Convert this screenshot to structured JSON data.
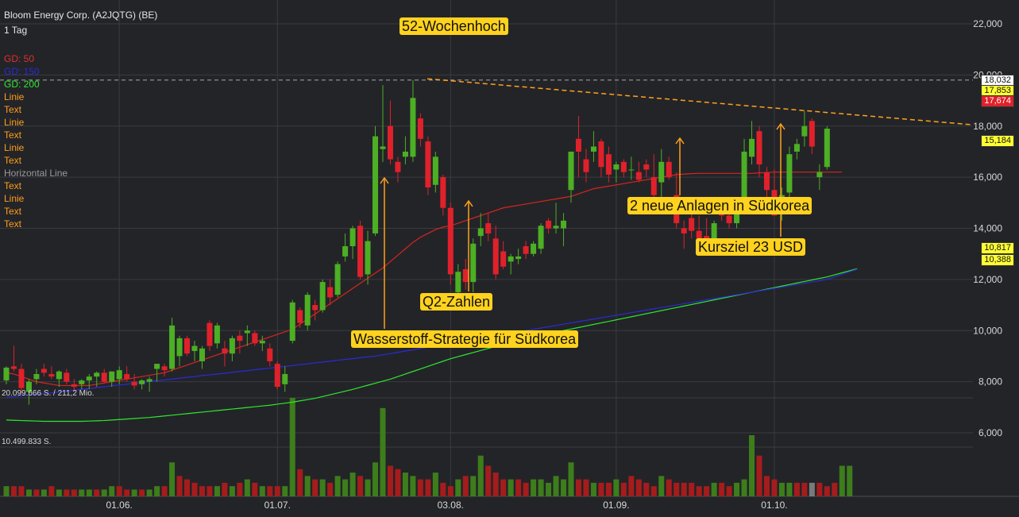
{
  "header": {
    "instrument": "Bloom Energy Corp. (A2JQTG) (BE)",
    "interval": "1 Tag"
  },
  "legend": [
    {
      "label": "GD: 50",
      "color": "#e0312b"
    },
    {
      "label": "GD: 150",
      "color": "#2b2bd6"
    },
    {
      "label": "GD: 200",
      "color": "#2ee82e"
    },
    {
      "label": "Linie",
      "color": "#ff9d1c"
    },
    {
      "label": "Text",
      "color": "#ff9d1c"
    },
    {
      "label": "Linie",
      "color": "#ff9d1c"
    },
    {
      "label": "Text",
      "color": "#ff9d1c"
    },
    {
      "label": "Linie",
      "color": "#ff9d1c"
    },
    {
      "label": "Text",
      "color": "#ff9d1c"
    },
    {
      "label": "Horizontal Line",
      "color": "#9a9a9a"
    },
    {
      "label": "Text",
      "color": "#ff9d1c"
    },
    {
      "label": "Linie",
      "color": "#ff9d1c"
    },
    {
      "label": "Text",
      "color": "#ff9d1c"
    },
    {
      "label": "Text",
      "color": "#ff9d1c"
    }
  ],
  "volume_labels": {
    "max": "20.099.666 S. / 211,2 Mio.",
    "mid": "10.499.833 S."
  },
  "annotations": {
    "high52": "52-Wochenhoch",
    "q2": "Q2-Zahlen",
    "wasserstoff": "Wasserstoff-Strategie für Südkorea",
    "anlagen": "2 neue Anlagen in Südkorea",
    "kursziel": "Kursziel 23 USD"
  },
  "price_tags": [
    {
      "text": "18,032",
      "bg": "#ffffff",
      "fg": "#111111"
    },
    {
      "text": "17,853",
      "bg": "#ffff33",
      "fg": "#111111"
    },
    {
      "text": "17,674",
      "bg": "#e0212b",
      "fg": "#ffffff"
    },
    {
      "text": "15,184",
      "bg": "#ffff33",
      "fg": "#111111"
    },
    {
      "text": "10,817",
      "bg": "#ffff33",
      "fg": "#111111"
    },
    {
      "text": "10,388",
      "bg": "#ffff33",
      "fg": "#111111"
    }
  ],
  "colors": {
    "up": "#4caf24",
    "down": "#e0212b",
    "vol_up": "#3d7d1c",
    "vol_down": "#a51c1c",
    "vol_neutral": "#7a7a7a",
    "grid": "#3a3b40",
    "axis_text": "#d8d8d8",
    "resistance": "#ffa21c"
  },
  "chart_data": {
    "type": "candlestick",
    "ylim": [
      6000,
      22000
    ],
    "y_ticks": [
      "22,000",
      "20,000",
      "18,000",
      "16,000",
      "14,000",
      "12,000",
      "10,000",
      "8,000",
      "6,000"
    ],
    "y_tick_values": [
      22000,
      20000,
      18000,
      16000,
      14000,
      12000,
      10000,
      8000,
      6000
    ],
    "x_ticks": [
      "01.06.",
      "01.07.",
      "03.08.",
      "01.09.",
      "01.10."
    ],
    "x_tick_index": [
      15,
      36,
      59,
      81,
      102
    ],
    "candles": [
      {
        "o": 8.05,
        "h": 8.6,
        "l": 7.9,
        "c": 8.55
      },
      {
        "o": 8.6,
        "h": 9.4,
        "l": 8.4,
        "c": 8.5
      },
      {
        "o": 8.5,
        "h": 8.7,
        "l": 7.6,
        "c": 7.75
      },
      {
        "o": 7.6,
        "h": 8.1,
        "l": 7.1,
        "c": 8.0
      },
      {
        "o": 8.1,
        "h": 8.5,
        "l": 7.9,
        "c": 8.3
      },
      {
        "o": 8.5,
        "h": 8.7,
        "l": 8.2,
        "c": 8.35
      },
      {
        "o": 8.3,
        "h": 8.6,
        "l": 8.1,
        "c": 8.2
      },
      {
        "o": 8.1,
        "h": 8.45,
        "l": 7.8,
        "c": 8.4
      },
      {
        "o": 8.35,
        "h": 8.5,
        "l": 7.9,
        "c": 8.0
      },
      {
        "o": 7.9,
        "h": 8.1,
        "l": 7.6,
        "c": 7.8
      },
      {
        "o": 7.9,
        "h": 8.1,
        "l": 7.7,
        "c": 8.05
      },
      {
        "o": 8.05,
        "h": 8.3,
        "l": 7.7,
        "c": 8.2
      },
      {
        "o": 8.2,
        "h": 8.4,
        "l": 7.8,
        "c": 8.35
      },
      {
        "o": 8.35,
        "h": 8.5,
        "l": 7.95,
        "c": 8.0
      },
      {
        "o": 8.0,
        "h": 8.4,
        "l": 7.8,
        "c": 8.4
      },
      {
        "o": 8.1,
        "h": 8.6,
        "l": 7.9,
        "c": 8.45
      },
      {
        "o": 8.3,
        "h": 8.6,
        "l": 8.0,
        "c": 8.1
      },
      {
        "o": 8.0,
        "h": 8.3,
        "l": 7.7,
        "c": 7.85
      },
      {
        "o": 7.9,
        "h": 8.1,
        "l": 7.7,
        "c": 8.05
      },
      {
        "o": 8.0,
        "h": 8.2,
        "l": 7.6,
        "c": 8.1
      },
      {
        "o": 8.5,
        "h": 8.7,
        "l": 8.0,
        "c": 8.7
      },
      {
        "o": 8.6,
        "h": 8.7,
        "l": 8.2,
        "c": 8.45
      },
      {
        "o": 8.5,
        "h": 10.5,
        "l": 8.4,
        "c": 10.2
      },
      {
        "o": 9.0,
        "h": 9.8,
        "l": 8.6,
        "c": 9.7
      },
      {
        "o": 9.7,
        "h": 9.8,
        "l": 9.0,
        "c": 9.1
      },
      {
        "o": 9.2,
        "h": 9.6,
        "l": 8.8,
        "c": 9.4
      },
      {
        "o": 8.8,
        "h": 9.4,
        "l": 8.5,
        "c": 9.3
      },
      {
        "o": 10.3,
        "h": 10.4,
        "l": 9.2,
        "c": 9.4
      },
      {
        "o": 9.5,
        "h": 10.3,
        "l": 9.3,
        "c": 10.2
      },
      {
        "o": 9.3,
        "h": 9.6,
        "l": 8.6,
        "c": 9.1
      },
      {
        "o": 9.1,
        "h": 9.8,
        "l": 8.8,
        "c": 9.7
      },
      {
        "o": 9.8,
        "h": 10.0,
        "l": 9.1,
        "c": 9.6
      },
      {
        "o": 9.9,
        "h": 10.2,
        "l": 9.4,
        "c": 10.0
      },
      {
        "o": 9.9,
        "h": 10.0,
        "l": 9.4,
        "c": 9.5
      },
      {
        "o": 9.5,
        "h": 9.8,
        "l": 9.2,
        "c": 9.6
      },
      {
        "o": 9.3,
        "h": 9.5,
        "l": 8.6,
        "c": 8.8
      },
      {
        "o": 8.7,
        "h": 8.8,
        "l": 7.7,
        "c": 7.8
      },
      {
        "o": 7.9,
        "h": 8.6,
        "l": 7.6,
        "c": 8.3
      },
      {
        "o": 9.6,
        "h": 11.2,
        "l": 9.5,
        "c": 11.1
      },
      {
        "o": 10.8,
        "h": 10.9,
        "l": 10.1,
        "c": 10.3
      },
      {
        "o": 10.2,
        "h": 11.5,
        "l": 10.0,
        "c": 11.4
      },
      {
        "o": 11.0,
        "h": 11.2,
        "l": 10.4,
        "c": 10.8
      },
      {
        "o": 10.8,
        "h": 12.0,
        "l": 10.7,
        "c": 11.9
      },
      {
        "o": 11.7,
        "h": 12.0,
        "l": 11.0,
        "c": 11.3
      },
      {
        "o": 11.4,
        "h": 12.7,
        "l": 11.3,
        "c": 12.6
      },
      {
        "o": 12.9,
        "h": 13.8,
        "l": 12.7,
        "c": 13.3
      },
      {
        "o": 13.3,
        "h": 14.1,
        "l": 12.8,
        "c": 14.0
      },
      {
        "o": 14.1,
        "h": 14.3,
        "l": 12.0,
        "c": 12.1
      },
      {
        "o": 12.2,
        "h": 13.9,
        "l": 11.8,
        "c": 13.5
      },
      {
        "o": 13.8,
        "h": 18.0,
        "l": 13.7,
        "c": 17.6
      },
      {
        "o": 17.1,
        "h": 19.6,
        "l": 16.6,
        "c": 17.2
      },
      {
        "o": 18.0,
        "h": 19.0,
        "l": 16.5,
        "c": 16.7
      },
      {
        "o": 16.6,
        "h": 16.8,
        "l": 15.8,
        "c": 16.2
      },
      {
        "o": 16.8,
        "h": 17.6,
        "l": 16.5,
        "c": 17.0
      },
      {
        "o": 16.8,
        "h": 19.8,
        "l": 16.6,
        "c": 19.1
      },
      {
        "o": 18.3,
        "h": 18.5,
        "l": 17.2,
        "c": 17.5
      },
      {
        "o": 17.4,
        "h": 17.6,
        "l": 15.3,
        "c": 15.6
      },
      {
        "o": 15.7,
        "h": 17.0,
        "l": 15.4,
        "c": 16.8
      },
      {
        "o": 16.0,
        "h": 16.1,
        "l": 14.5,
        "c": 14.8
      },
      {
        "o": 14.8,
        "h": 15.0,
        "l": 11.8,
        "c": 12.2
      },
      {
        "o": 11.5,
        "h": 12.6,
        "l": 11.3,
        "c": 12.3
      },
      {
        "o": 12.4,
        "h": 12.8,
        "l": 11.6,
        "c": 11.9
      },
      {
        "o": 11.9,
        "h": 13.6,
        "l": 11.5,
        "c": 13.4
      },
      {
        "o": 13.7,
        "h": 14.6,
        "l": 13.3,
        "c": 14.0
      },
      {
        "o": 14.2,
        "h": 14.6,
        "l": 13.5,
        "c": 13.8
      },
      {
        "o": 13.6,
        "h": 14.1,
        "l": 12.0,
        "c": 12.2
      },
      {
        "o": 13.1,
        "h": 13.5,
        "l": 12.4,
        "c": 12.5
      },
      {
        "o": 12.7,
        "h": 13.0,
        "l": 12.2,
        "c": 12.9
      },
      {
        "o": 12.8,
        "h": 13.2,
        "l": 12.6,
        "c": 12.9
      },
      {
        "o": 13.3,
        "h": 13.5,
        "l": 12.8,
        "c": 13.0
      },
      {
        "o": 13.0,
        "h": 13.5,
        "l": 12.9,
        "c": 13.4
      },
      {
        "o": 13.2,
        "h": 14.2,
        "l": 13.0,
        "c": 14.1
      },
      {
        "o": 14.3,
        "h": 14.4,
        "l": 13.8,
        "c": 14.0
      },
      {
        "o": 14.0,
        "h": 15.0,
        "l": 13.8,
        "c": 14.1
      },
      {
        "o": 14.0,
        "h": 14.6,
        "l": 13.3,
        "c": 14.3
      },
      {
        "o": 15.5,
        "h": 16.8,
        "l": 15.0,
        "c": 17.0
      },
      {
        "o": 17.5,
        "h": 18.4,
        "l": 16.0,
        "c": 17.0
      },
      {
        "o": 16.7,
        "h": 17.1,
        "l": 15.8,
        "c": 16.2
      },
      {
        "o": 17.0,
        "h": 17.8,
        "l": 16.6,
        "c": 17.2
      },
      {
        "o": 17.4,
        "h": 17.5,
        "l": 16.0,
        "c": 16.4
      },
      {
        "o": 16.9,
        "h": 17.2,
        "l": 15.8,
        "c": 16.1
      },
      {
        "o": 16.3,
        "h": 16.6,
        "l": 15.8,
        "c": 16.5
      },
      {
        "o": 16.6,
        "h": 16.7,
        "l": 16.0,
        "c": 16.2
      },
      {
        "o": 16.3,
        "h": 16.8,
        "l": 15.9,
        "c": 16.3
      },
      {
        "o": 16.2,
        "h": 16.6,
        "l": 15.8,
        "c": 15.9
      },
      {
        "o": 16.5,
        "h": 16.7,
        "l": 16.0,
        "c": 16.3
      },
      {
        "o": 16.0,
        "h": 16.9,
        "l": 15.1,
        "c": 15.3
      },
      {
        "o": 15.8,
        "h": 17.1,
        "l": 15.2,
        "c": 16.6
      },
      {
        "o": 16.6,
        "h": 16.8,
        "l": 15.9,
        "c": 16.0
      },
      {
        "o": 15.3,
        "h": 16.2,
        "l": 14.0,
        "c": 14.2
      },
      {
        "o": 14.0,
        "h": 14.3,
        "l": 13.2,
        "c": 13.8
      },
      {
        "o": 14.4,
        "h": 14.7,
        "l": 13.6,
        "c": 13.9
      },
      {
        "o": 13.9,
        "h": 14.5,
        "l": 13.5,
        "c": 13.6
      },
      {
        "o": 13.7,
        "h": 14.4,
        "l": 13.2,
        "c": 13.4
      },
      {
        "o": 13.4,
        "h": 14.3,
        "l": 13.3,
        "c": 14.2
      },
      {
        "o": 14.6,
        "h": 15.2,
        "l": 14.3,
        "c": 14.5
      },
      {
        "o": 14.5,
        "h": 15.0,
        "l": 14.0,
        "c": 14.2
      },
      {
        "o": 14.2,
        "h": 15.2,
        "l": 14.0,
        "c": 14.6
      },
      {
        "o": 15.0,
        "h": 17.5,
        "l": 14.8,
        "c": 17.0
      },
      {
        "o": 16.8,
        "h": 18.2,
        "l": 16.5,
        "c": 17.5
      },
      {
        "o": 17.8,
        "h": 18.0,
        "l": 16.0,
        "c": 16.5
      },
      {
        "o": 16.2,
        "h": 16.4,
        "l": 14.8,
        "c": 15.5
      },
      {
        "o": 15.5,
        "h": 16.3,
        "l": 14.6,
        "c": 14.5
      },
      {
        "o": 14.6,
        "h": 15.6,
        "l": 14.3,
        "c": 15.3
      },
      {
        "o": 15.4,
        "h": 17.2,
        "l": 15.2,
        "c": 16.9
      },
      {
        "o": 17.0,
        "h": 17.5,
        "l": 16.7,
        "c": 17.3
      },
      {
        "o": 17.6,
        "h": 18.6,
        "l": 17.2,
        "c": 18.0
      },
      {
        "o": 18.2,
        "h": 18.3,
        "l": 16.9,
        "c": 17.2
      },
      {
        "o": 16.0,
        "h": 16.5,
        "l": 15.5,
        "c": 16.2
      },
      {
        "o": 16.4,
        "h": 18.0,
        "l": 16.3,
        "c": 17.9
      }
    ],
    "volume": [
      3,
      3,
      3,
      2,
      2,
      2,
      3,
      2,
      2,
      2,
      2,
      2,
      2,
      2,
      3,
      3,
      2,
      2,
      2,
      2,
      3,
      3,
      10,
      6,
      5,
      4,
      3,
      3,
      3,
      4,
      3,
      4,
      5,
      4,
      3,
      3,
      3,
      3,
      29,
      8,
      6,
      5,
      5,
      4,
      6,
      5,
      7,
      6,
      5,
      10,
      26,
      9,
      8,
      7,
      6,
      5,
      5,
      7,
      4,
      3,
      5,
      6,
      6,
      12,
      9,
      7,
      5,
      5,
      5,
      4,
      5,
      5,
      4,
      6,
      5,
      10,
      5,
      5,
      4,
      4,
      4,
      5,
      4,
      6,
      5,
      4,
      3,
      6,
      5,
      4,
      4,
      4,
      3,
      3,
      4,
      4,
      3,
      4,
      5,
      18,
      12,
      6,
      5,
      4,
      4,
      4,
      4,
      4,
      4,
      3,
      4,
      9,
      9
    ],
    "volume_direction": [
      "u",
      "d",
      "d",
      "u",
      "d",
      "u",
      "d",
      "u",
      "d",
      "d",
      "u",
      "u",
      "d",
      "u",
      "u",
      "d",
      "d",
      "u",
      "d",
      "u",
      "u",
      "d",
      "u",
      "d",
      "d",
      "d",
      "d",
      "d",
      "u",
      "d",
      "u",
      "d",
      "u",
      "d",
      "u",
      "d",
      "d",
      "u",
      "u",
      "d",
      "u",
      "d",
      "u",
      "d",
      "u",
      "u",
      "u",
      "d",
      "u",
      "u",
      "u",
      "d",
      "d",
      "u",
      "u",
      "d",
      "d",
      "u",
      "d",
      "d",
      "u",
      "d",
      "u",
      "u",
      "d",
      "d",
      "d",
      "u",
      "d",
      "d",
      "u",
      "u",
      "u",
      "u",
      "u",
      "u",
      "d",
      "d",
      "u",
      "d",
      "d",
      "u",
      "d",
      "d",
      "d",
      "d",
      "d",
      "u",
      "d",
      "d",
      "d",
      "d",
      "d",
      "d",
      "u",
      "d",
      "d",
      "u",
      "u",
      "u",
      "d",
      "d",
      "d",
      "u",
      "u",
      "d",
      "d",
      "n",
      "d",
      "d",
      "d",
      "u",
      "u"
    ],
    "sma50": [
      8.35,
      8.3,
      8.2,
      8.1,
      8.0,
      7.95,
      7.9,
      7.85,
      7.85,
      7.85,
      7.85,
      7.85,
      7.9,
      7.95,
      8.0,
      8.05,
      8.1,
      8.15,
      8.2,
      8.25,
      8.3,
      8.35,
      8.45,
      8.55,
      8.65,
      8.75,
      8.85,
      8.95,
      9.05,
      9.15,
      9.25,
      9.35,
      9.45,
      9.55,
      9.65,
      9.75,
      9.85,
      9.95,
      10.05,
      10.25,
      10.45,
      10.65,
      10.85,
      11.05,
      11.25,
      11.45,
      11.65,
      11.85,
      12.05,
      12.25,
      12.45,
      12.7,
      12.95,
      13.2,
      13.45,
      13.65,
      13.8,
      13.95,
      14.05,
      14.1,
      14.2,
      14.3,
      14.4,
      14.5,
      14.6,
      14.7,
      14.8,
      14.85,
      14.9,
      14.95,
      15.0,
      15.05,
      15.1,
      15.15,
      15.2,
      15.25,
      15.35,
      15.45,
      15.55,
      15.6,
      15.65,
      15.7,
      15.75,
      15.8,
      15.85,
      15.9,
      15.95,
      16.0,
      16.05,
      16.1,
      16.12,
      16.14,
      16.15,
      16.15,
      16.15,
      16.15,
      16.15,
      16.15,
      16.15,
      16.15,
      16.17,
      16.18,
      16.2,
      16.2,
      16.2,
      16.2,
      16.2,
      16.2,
      16.2,
      16.2,
      16.2,
      16.2
    ],
    "sma150": [
      7.4,
      7.42,
      7.45,
      7.48,
      7.5,
      7.53,
      7.56,
      7.6,
      7.63,
      7.66,
      7.7,
      7.73,
      7.77,
      7.8,
      7.84,
      7.87,
      7.9,
      7.94,
      7.97,
      8.0,
      8.04,
      8.07,
      8.1,
      8.14,
      8.17,
      8.2,
      8.24,
      8.27,
      8.3,
      8.33,
      8.37,
      8.4,
      8.43,
      8.47,
      8.5,
      8.53,
      8.57,
      8.6,
      8.63,
      8.67,
      8.7,
      8.74,
      8.77,
      8.8,
      8.84,
      8.87,
      8.9,
      8.94,
      8.97,
      9.0,
      9.05,
      9.1,
      9.15,
      9.2,
      9.25,
      9.3,
      9.35,
      9.4,
      9.45,
      9.5,
      9.55,
      9.6,
      9.65,
      9.7,
      9.75,
      9.8,
      9.85,
      9.9,
      9.95,
      10.0,
      10.05,
      10.1,
      10.15,
      10.2,
      10.25,
      10.3,
      10.35,
      10.4,
      10.45,
      10.5,
      10.55,
      10.6,
      10.65,
      10.7,
      10.75,
      10.8,
      10.85,
      10.9,
      10.95,
      11.0,
      11.05,
      11.1,
      11.15,
      11.2,
      11.25,
      11.3,
      11.35,
      11.4,
      11.45,
      11.5,
      11.55,
      11.6,
      11.65,
      11.7,
      11.75,
      11.8,
      11.85,
      11.9,
      11.95,
      12.0,
      12.1,
      12.2,
      12.3,
      12.4
    ],
    "sma200": [
      6.5,
      6.49,
      6.48,
      6.47,
      6.46,
      6.45,
      6.45,
      6.45,
      6.45,
      6.45,
      6.45,
      6.46,
      6.47,
      6.48,
      6.5,
      6.52,
      6.54,
      6.56,
      6.58,
      6.6,
      6.63,
      6.66,
      6.69,
      6.72,
      6.75,
      6.78,
      6.81,
      6.84,
      6.87,
      6.9,
      6.93,
      6.96,
      6.99,
      7.02,
      7.05,
      7.08,
      7.12,
      7.16,
      7.2,
      7.25,
      7.3,
      7.35,
      7.42,
      7.49,
      7.56,
      7.63,
      7.7,
      7.78,
      7.86,
      7.94,
      8.02,
      8.1,
      8.2,
      8.3,
      8.4,
      8.5,
      8.6,
      8.7,
      8.8,
      8.9,
      8.98,
      9.06,
      9.14,
      9.22,
      9.3,
      9.38,
      9.45,
      9.52,
      9.59,
      9.66,
      9.73,
      9.8,
      9.87,
      9.94,
      10.0,
      10.06,
      10.12,
      10.18,
      10.24,
      10.3,
      10.36,
      10.42,
      10.48,
      10.54,
      10.6,
      10.66,
      10.72,
      10.78,
      10.84,
      10.9,
      10.96,
      11.02,
      11.08,
      11.14,
      11.2,
      11.26,
      11.32,
      11.38,
      11.44,
      11.5,
      11.56,
      11.62,
      11.68,
      11.74,
      11.8,
      11.86,
      11.92,
      11.98,
      12.04,
      12.1,
      12.18,
      12.26,
      12.34,
      12.42
    ]
  }
}
